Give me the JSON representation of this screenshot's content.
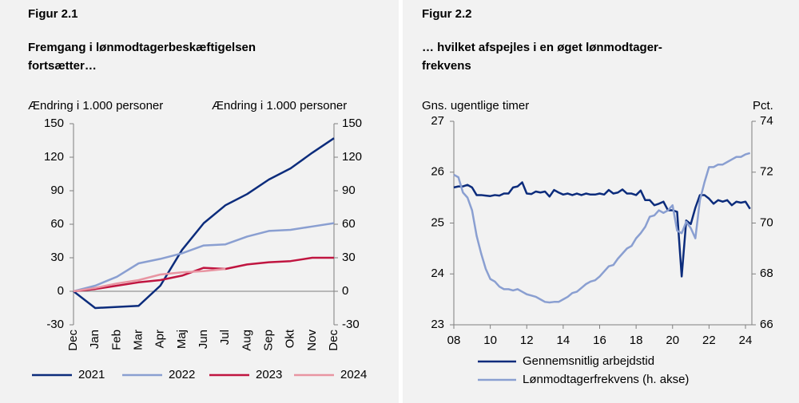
{
  "chart_data": [
    {
      "type": "line",
      "title": "Figur 2.1",
      "subtitle": [
        "Fremgang i lønmodtagerbeskæftigelsen",
        "fortsætter…"
      ],
      "ylabel": "Ændring i 1.000 personer",
      "y2label": "Ændring i 1.000 personer",
      "categories": [
        "Dec",
        "Jan",
        "Feb",
        "Mar",
        "Apr",
        "Maj",
        "Jun",
        "Jul",
        "Aug",
        "Sep",
        "Okt",
        "Nov",
        "Dec"
      ],
      "series": [
        {
          "name": "2021",
          "color": "#0c2c7c",
          "values": [
            0,
            -15,
            -14,
            -13,
            5,
            37,
            61,
            77,
            87,
            100,
            110,
            124,
            137
          ]
        },
        {
          "name": "2022",
          "color": "#8a9fd1",
          "values": [
            0,
            5,
            13,
            25,
            29,
            34,
            41,
            42,
            49,
            54,
            55,
            58,
            61
          ]
        },
        {
          "name": "2023",
          "color": "#c01540",
          "values": [
            0,
            2,
            5,
            8,
            10,
            14,
            21,
            20,
            24,
            26,
            27,
            30,
            30
          ]
        },
        {
          "name": "2024",
          "color": "#e895a2",
          "values": [
            0,
            3,
            7,
            10,
            15,
            17,
            18,
            20,
            null,
            null,
            null,
            null,
            null
          ]
        }
      ],
      "ylim": [
        -30,
        150
      ],
      "yticks": [
        -30,
        0,
        30,
        60,
        90,
        120,
        150
      ],
      "y2lim": [
        -30,
        150
      ],
      "y2ticks": [
        -30,
        0,
        30,
        60,
        90,
        120,
        150
      ],
      "legend": "bottom"
    },
    {
      "type": "line",
      "title": "Figur 2.2",
      "subtitle": [
        "… hvilket afspejles i en øget lønmodtager-",
        "frekvens"
      ],
      "ylabel": "Gns. ugentlige timer",
      "y2label": "Pct.",
      "x": [
        2008,
        2008.25,
        2008.5,
        2008.75,
        2009,
        2009.25,
        2009.5,
        2009.75,
        2010,
        2010.25,
        2010.5,
        2010.75,
        2011,
        2011.25,
        2011.5,
        2011.75,
        2012,
        2012.25,
        2012.5,
        2012.75,
        2013,
        2013.25,
        2013.5,
        2013.75,
        2014,
        2014.25,
        2014.5,
        2014.75,
        2015,
        2015.25,
        2015.5,
        2015.75,
        2016,
        2016.25,
        2016.5,
        2016.75,
        2017,
        2017.25,
        2017.5,
        2017.75,
        2018,
        2018.25,
        2018.5,
        2018.75,
        2019,
        2019.25,
        2019.5,
        2019.75,
        2020,
        2020.25,
        2020.5,
        2020.75,
        2021,
        2021.25,
        2021.5,
        2021.75,
        2022,
        2022.25,
        2022.5,
        2022.75,
        2023,
        2023.25,
        2023.5,
        2023.75,
        2024,
        2024.25
      ],
      "series": [
        {
          "name": "Gennemsnitlig arbejdstid",
          "color": "#0c2c7c",
          "values": [
            25.7,
            25.72,
            25.72,
            25.75,
            25.7,
            25.55,
            25.55,
            25.54,
            25.53,
            25.55,
            25.54,
            25.58,
            25.58,
            25.7,
            25.72,
            25.8,
            25.58,
            25.57,
            25.62,
            25.6,
            25.62,
            25.52,
            25.65,
            25.6,
            25.56,
            25.58,
            25.55,
            25.58,
            25.55,
            25.58,
            25.56,
            25.56,
            25.58,
            25.56,
            25.65,
            25.58,
            25.6,
            25.66,
            25.58,
            25.58,
            25.55,
            25.64,
            25.45,
            25.45,
            25.35,
            25.38,
            25.42,
            25.25,
            25.25,
            25.22,
            23.95,
            25.05,
            24.98,
            25.3,
            25.55,
            25.55,
            25.48,
            25.38,
            25.45,
            25.42,
            25.45,
            25.35,
            25.42,
            25.4,
            25.42,
            25.28
          ]
        },
        {
          "name": "Lønmodtagerfrekvens (h. akse)",
          "color": "#8a9fd1",
          "axis": "y2",
          "values": [
            71.9,
            71.8,
            71.2,
            71.0,
            70.5,
            69.5,
            68.8,
            68.2,
            67.8,
            67.7,
            67.5,
            67.4,
            67.4,
            67.35,
            67.4,
            67.3,
            67.2,
            67.15,
            67.1,
            67.0,
            66.9,
            66.88,
            66.9,
            66.9,
            67.0,
            67.1,
            67.25,
            67.3,
            67.45,
            67.6,
            67.7,
            67.75,
            67.9,
            68.1,
            68.3,
            68.35,
            68.6,
            68.8,
            69.0,
            69.1,
            69.4,
            69.6,
            69.85,
            70.25,
            70.3,
            70.5,
            70.4,
            70.5,
            70.7,
            69.7,
            69.6,
            70.05,
            69.8,
            69.4,
            70.9,
            71.6,
            72.2,
            72.2,
            72.3,
            72.3,
            72.4,
            72.5,
            72.6,
            72.6,
            72.7,
            72.75
          ]
        }
      ],
      "xlim": [
        2008,
        2024.35
      ],
      "xticks": [
        {
          "value": 2008,
          "label": "08"
        },
        {
          "value": 2010,
          "label": "10"
        },
        {
          "value": 2012,
          "label": "12"
        },
        {
          "value": 2014,
          "label": "14"
        },
        {
          "value": 2016,
          "label": "16"
        },
        {
          "value": 2018,
          "label": "18"
        },
        {
          "value": 2020,
          "label": "20"
        },
        {
          "value": 2022,
          "label": "22"
        },
        {
          "value": 2024,
          "label": "24"
        }
      ],
      "ylim": [
        23,
        27
      ],
      "yticks": [
        23,
        24,
        25,
        26,
        27
      ],
      "y2lim": [
        66,
        74
      ],
      "y2ticks": [
        66,
        68,
        70,
        72,
        74
      ],
      "legend": "bottom"
    }
  ]
}
